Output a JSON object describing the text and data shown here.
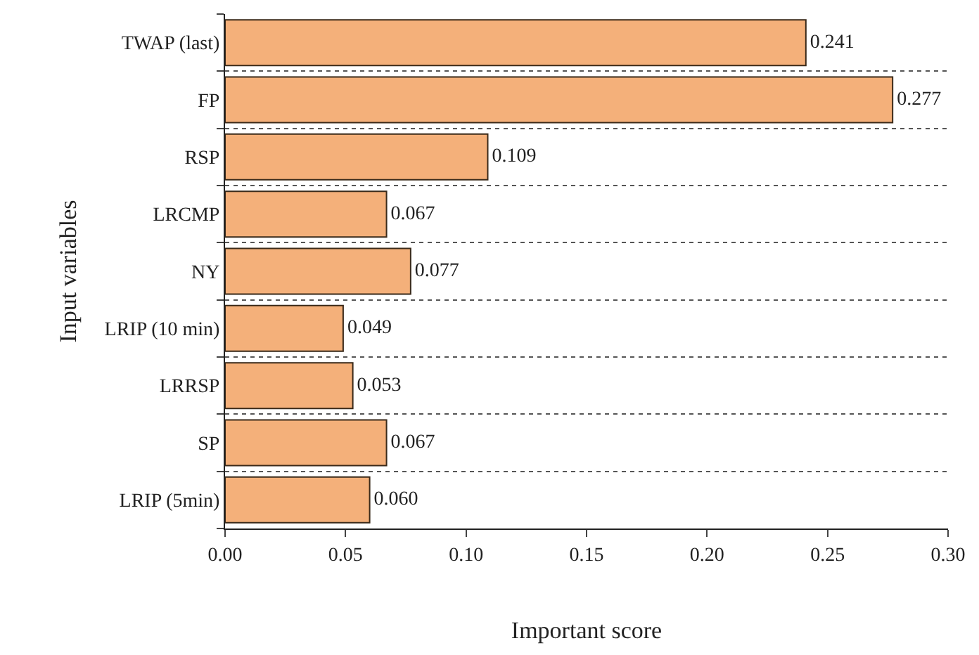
{
  "chart_data": {
    "type": "bar",
    "orientation": "horizontal",
    "xlabel": "Important score",
    "ylabel": "Input variables",
    "categories": [
      "TWAP (last)",
      "FP",
      "RSP",
      "LRCMP",
      "NY",
      "LRIP (10 min)",
      "LRRSP",
      "SP",
      "LRIP (5min)"
    ],
    "values": [
      0.241,
      0.277,
      0.109,
      0.067,
      0.077,
      0.049,
      0.053,
      0.067,
      0.06
    ],
    "value_labels": [
      "0.241",
      "0.277",
      "0.109",
      "0.067",
      "0.077",
      "0.049",
      "0.053",
      "0.067",
      "0.060"
    ],
    "color": "#f4b07a",
    "grid": "y",
    "legend": false,
    "xlim": [
      0,
      0.3
    ],
    "xticks": [
      {
        "value": 0,
        "label": "0.00"
      },
      {
        "value": 0.05,
        "label": "0.05"
      },
      {
        "value": 0.1,
        "label": "0.10"
      },
      {
        "value": 0.15,
        "label": "0.15"
      },
      {
        "value": 0.2,
        "label": "0.20"
      },
      {
        "value": 0.25,
        "label": "0.25"
      },
      {
        "value": 0.3,
        "label": "0.30"
      }
    ]
  }
}
